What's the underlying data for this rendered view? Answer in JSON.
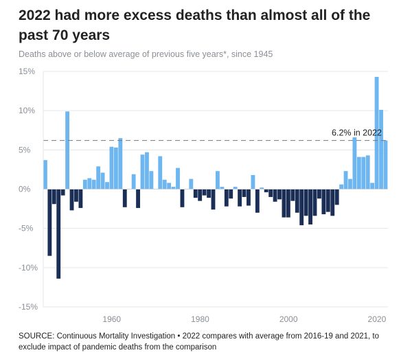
{
  "header": {
    "title": "2022 had more excess deaths than almost all of the past 70 years",
    "subtitle": "Deaths above or below average of previous five years*, since 1945"
  },
  "footer": {
    "source": "SOURCE: Continuous Mortality Investigation • 2022 compares with average from 2016-19 and 2021, to exclude impact of pandemic deaths from the comparison"
  },
  "colors": {
    "positive": "#6eb6f0",
    "negative": "#1b2f56",
    "grid": "#e3e6ea",
    "reference_line": "#777777"
  },
  "chart_data": {
    "type": "bar",
    "title": "2022 had more excess deaths than almost all of the past 70 years",
    "subtitle": "Deaths above or below average of previous five years*, since 1945",
    "ylabel": "",
    "xlabel": "",
    "ylim": [
      -15,
      15
    ],
    "xlim": [
      1945,
      2022
    ],
    "y_ticks": [
      15,
      10,
      5,
      0,
      -5,
      -10,
      -15
    ],
    "y_tick_labels": [
      "15%",
      "10%",
      "5%",
      "0%",
      "-5%",
      "-10%",
      "-15%"
    ],
    "x_ticks": [
      1960,
      1980,
      2000,
      2020
    ],
    "x_tick_labels": [
      "1960",
      "1980",
      "2000",
      "2020"
    ],
    "grid": "horizontal",
    "x": [
      1945,
      1946,
      1947,
      1948,
      1949,
      1950,
      1951,
      1952,
      1953,
      1954,
      1955,
      1956,
      1957,
      1958,
      1959,
      1960,
      1961,
      1962,
      1963,
      1964,
      1965,
      1966,
      1967,
      1968,
      1969,
      1970,
      1971,
      1972,
      1973,
      1974,
      1975,
      1976,
      1977,
      1978,
      1979,
      1980,
      1981,
      1982,
      1983,
      1984,
      1985,
      1986,
      1987,
      1988,
      1989,
      1990,
      1991,
      1992,
      1993,
      1994,
      1995,
      1996,
      1997,
      1998,
      1999,
      2000,
      2001,
      2002,
      2003,
      2004,
      2005,
      2006,
      2007,
      2008,
      2009,
      2010,
      2011,
      2012,
      2013,
      2014,
      2015,
      2016,
      2017,
      2018,
      2019,
      2020,
      2021,
      2022
    ],
    "values": [
      3.7,
      -8.5,
      -1.9,
      -11.4,
      -0.8,
      9.9,
      -2.7,
      -1.6,
      -2.4,
      1.2,
      1.4,
      1.2,
      2.9,
      2.1,
      0.9,
      5.4,
      5.3,
      6.5,
      -2.3,
      0.0,
      1.9,
      -2.4,
      4.4,
      4.7,
      2.3,
      0.0,
      4.2,
      1.2,
      0.8,
      0.3,
      2.7,
      -2.3,
      0.0,
      1.3,
      -1.1,
      -1.5,
      -0.8,
      -1.1,
      -2.6,
      2.3,
      0.3,
      -2.2,
      -1.2,
      0.3,
      -2.2,
      -1.0,
      -2.1,
      1.8,
      -3.0,
      0.2,
      -0.4,
      -1.0,
      -1.6,
      -1.3,
      -3.6,
      -3.6,
      -1.5,
      -3.0,
      -4.6,
      -3.4,
      -4.5,
      -3.4,
      -1.2,
      -3.2,
      -2.9,
      -3.4,
      -2.0,
      0.6,
      2.3,
      1.3,
      6.6,
      4.1,
      4.1,
      4.3,
      0.8,
      14.3,
      10.1,
      6.2
    ],
    "reference_line": {
      "value": 6.2,
      "label": "6.2% in 2022"
    }
  }
}
